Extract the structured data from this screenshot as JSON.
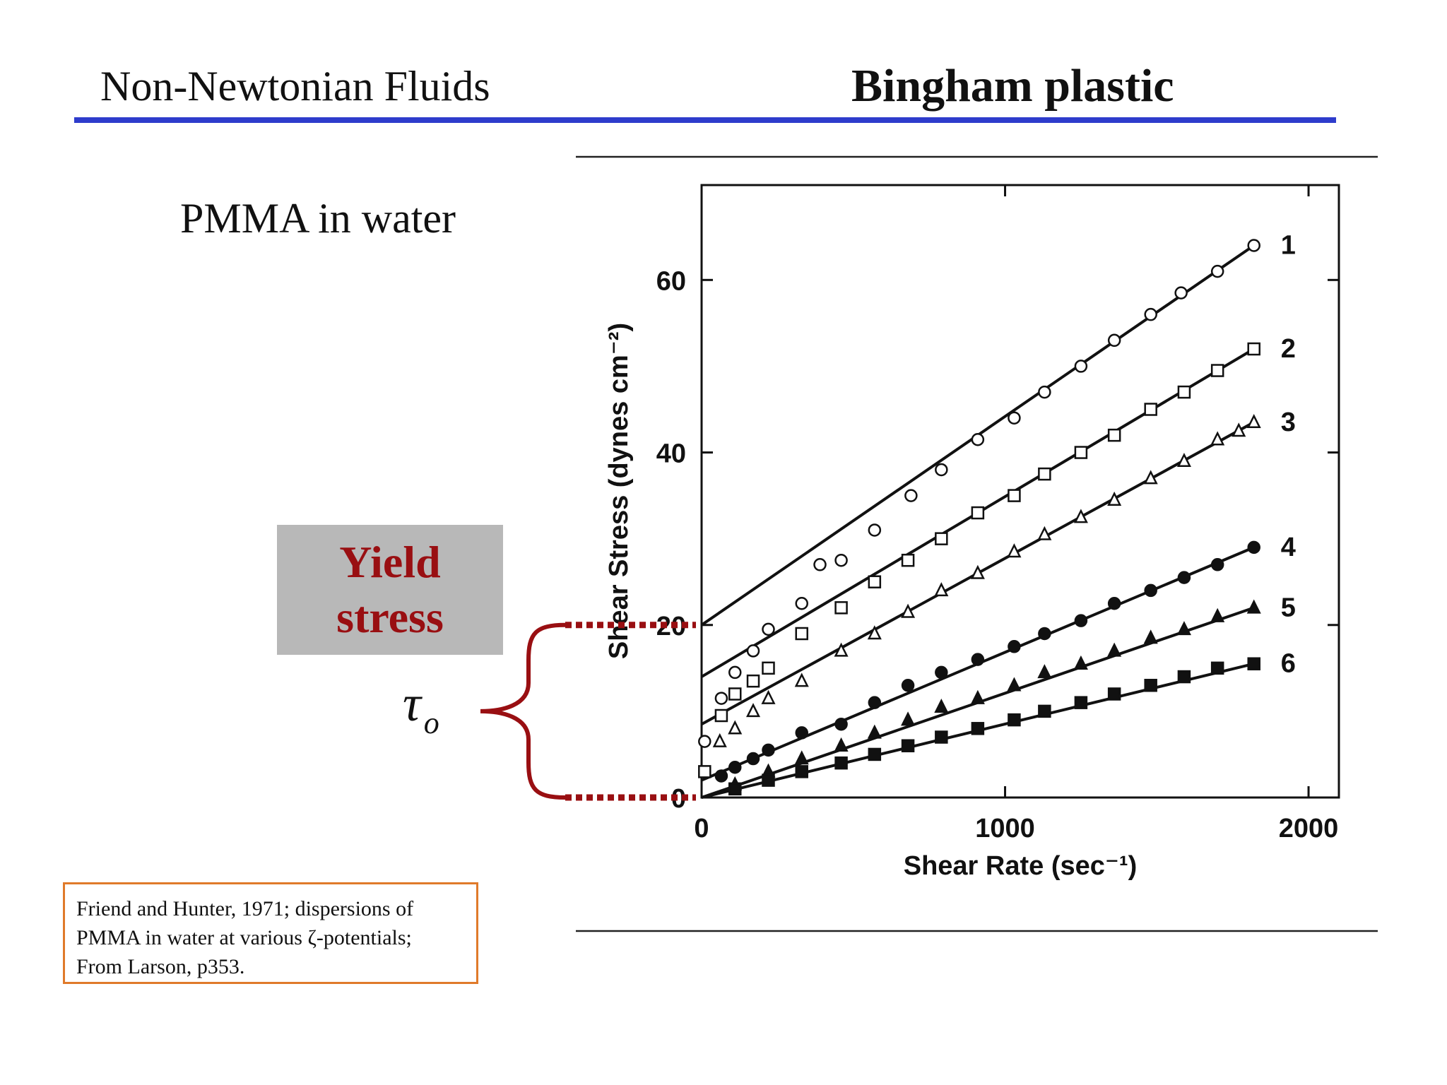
{
  "slide": {
    "title": "Non-Newtonian Fluids",
    "subtitle": "Bingham plastic",
    "topic": "PMMA in water",
    "yield_label": [
      "Yield",
      "stress"
    ],
    "tau_symbol": "τ",
    "tau_subscript": "o",
    "citation": [
      "Friend and Hunter, 1971; dispersions of",
      "PMMA in water at various ζ-potentials;",
      "From Larson, p353."
    ],
    "colors": {
      "title_rule": "#2e3ccc",
      "yield_text": "#990f12",
      "yield_box": "#b8b8b8",
      "brace": "#990f12",
      "citation_border": "#e07a2a"
    }
  },
  "chart_data": {
    "type": "scatter",
    "xlabel": "Shear Rate (sec⁻¹)",
    "ylabel": "Shear Stress (dynes cm⁻²)",
    "xlim": [
      0,
      2100
    ],
    "ylim": [
      0,
      71
    ],
    "xticks": [
      0,
      1000,
      2000
    ],
    "yticks": [
      0,
      20,
      40,
      60
    ],
    "grid": false,
    "series": [
      {
        "name": "1",
        "marker": "circle-open",
        "fit": [
          [
            0,
            20
          ],
          [
            1820,
            64
          ]
        ],
        "points": [
          [
            10,
            6.5
          ],
          [
            65,
            11.5
          ],
          [
            110,
            14.5
          ],
          [
            170,
            17
          ],
          [
            220,
            19.5
          ],
          [
            330,
            22.5
          ],
          [
            390,
            27
          ],
          [
            460,
            27.5
          ],
          [
            570,
            31
          ],
          [
            690,
            35
          ],
          [
            790,
            38
          ],
          [
            910,
            41.5
          ],
          [
            1030,
            44
          ],
          [
            1130,
            47
          ],
          [
            1250,
            50
          ],
          [
            1360,
            53
          ],
          [
            1480,
            56
          ],
          [
            1580,
            58.5
          ],
          [
            1700,
            61
          ],
          [
            1820,
            64
          ]
        ]
      },
      {
        "name": "2",
        "marker": "square-open",
        "fit": [
          [
            0,
            14
          ],
          [
            1820,
            52
          ]
        ],
        "points": [
          [
            10,
            3
          ],
          [
            65,
            9.5
          ],
          [
            110,
            12
          ],
          [
            170,
            13.5
          ],
          [
            220,
            15
          ],
          [
            330,
            19
          ],
          [
            460,
            22
          ],
          [
            570,
            25
          ],
          [
            680,
            27.5
          ],
          [
            790,
            30
          ],
          [
            910,
            33
          ],
          [
            1030,
            35
          ],
          [
            1130,
            37.5
          ],
          [
            1250,
            40
          ],
          [
            1360,
            42
          ],
          [
            1480,
            45
          ],
          [
            1590,
            47
          ],
          [
            1700,
            49.5
          ],
          [
            1820,
            52
          ]
        ]
      },
      {
        "name": "3",
        "marker": "triangle-open",
        "fit": [
          [
            0,
            8.5
          ],
          [
            1820,
            43.5
          ]
        ],
        "points": [
          [
            60,
            6.5
          ],
          [
            110,
            8
          ],
          [
            170,
            10
          ],
          [
            220,
            11.5
          ],
          [
            330,
            13.5
          ],
          [
            460,
            17
          ],
          [
            570,
            19
          ],
          [
            680,
            21.5
          ],
          [
            790,
            24
          ],
          [
            910,
            26
          ],
          [
            1030,
            28.5
          ],
          [
            1130,
            30.5
          ],
          [
            1250,
            32.5
          ],
          [
            1360,
            34.5
          ],
          [
            1480,
            37
          ],
          [
            1590,
            39
          ],
          [
            1700,
            41.5
          ],
          [
            1770,
            42.5
          ],
          [
            1820,
            43.5
          ]
        ]
      },
      {
        "name": "4",
        "marker": "circle-filled",
        "fit": [
          [
            0,
            2
          ],
          [
            1820,
            29
          ]
        ],
        "points": [
          [
            65,
            2.5
          ],
          [
            110,
            3.5
          ],
          [
            170,
            4.5
          ],
          [
            220,
            5.5
          ],
          [
            330,
            7.5
          ],
          [
            460,
            8.5
          ],
          [
            570,
            11
          ],
          [
            680,
            13
          ],
          [
            790,
            14.5
          ],
          [
            910,
            16
          ],
          [
            1030,
            17.5
          ],
          [
            1130,
            19
          ],
          [
            1250,
            20.5
          ],
          [
            1360,
            22.5
          ],
          [
            1480,
            24
          ],
          [
            1590,
            25.5
          ],
          [
            1700,
            27
          ],
          [
            1820,
            29
          ]
        ]
      },
      {
        "name": "5",
        "marker": "triangle-filled",
        "fit": [
          [
            0,
            0
          ],
          [
            1820,
            22
          ]
        ],
        "points": [
          [
            110,
            1.5
          ],
          [
            220,
            3
          ],
          [
            330,
            4.5
          ],
          [
            460,
            6
          ],
          [
            570,
            7.5
          ],
          [
            680,
            9
          ],
          [
            790,
            10.5
          ],
          [
            910,
            11.5
          ],
          [
            1030,
            13
          ],
          [
            1130,
            14.5
          ],
          [
            1250,
            15.5
          ],
          [
            1360,
            17
          ],
          [
            1480,
            18.5
          ],
          [
            1590,
            19.5
          ],
          [
            1700,
            21
          ],
          [
            1820,
            22
          ]
        ]
      },
      {
        "name": "6",
        "marker": "square-filled",
        "fit": [
          [
            0,
            0
          ],
          [
            1820,
            15.5
          ]
        ],
        "points": [
          [
            110,
            1
          ],
          [
            220,
            2
          ],
          [
            330,
            3
          ],
          [
            460,
            4
          ],
          [
            570,
            5
          ],
          [
            680,
            6
          ],
          [
            790,
            7
          ],
          [
            910,
            8
          ],
          [
            1030,
            9
          ],
          [
            1130,
            10
          ],
          [
            1250,
            11
          ],
          [
            1360,
            12
          ],
          [
            1480,
            13
          ],
          [
            1590,
            14
          ],
          [
            1700,
            15
          ],
          [
            1820,
            15.5
          ]
        ]
      }
    ]
  }
}
